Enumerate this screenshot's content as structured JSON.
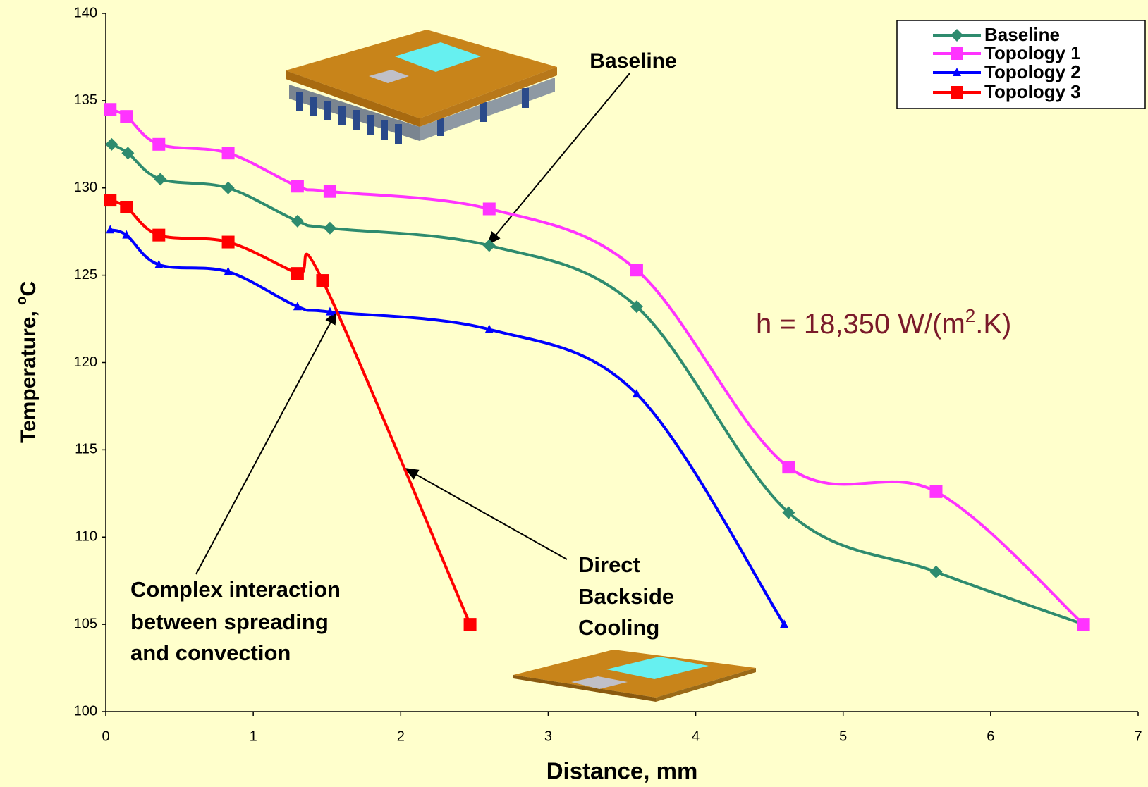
{
  "chart_data": {
    "type": "line",
    "xlabel": "Distance, mm",
    "ylabel": [
      "Temperature, ",
      "o",
      "C"
    ],
    "xlim": [
      0,
      7
    ],
    "xticks": [
      0,
      1,
      2,
      3,
      4,
      5,
      6,
      7
    ],
    "ylim": [
      100,
      140
    ],
    "yticks": [
      100,
      105,
      110,
      115,
      120,
      125,
      130,
      135,
      140
    ],
    "legend": "top-right",
    "series": [
      {
        "name": "Baseline",
        "color": "#2e8b6e",
        "marker": "diamond",
        "x": [
          0.04,
          0.15,
          0.37,
          0.83,
          1.3,
          1.52,
          2.6,
          3.6,
          4.63,
          5.63,
          6.63
        ],
        "values": [
          132.5,
          132,
          130.5,
          130,
          128.1,
          127.7,
          126.7,
          123.2,
          111.4,
          108,
          105
        ]
      },
      {
        "name": "Topology 1",
        "color": "#ff33ff",
        "marker": "square",
        "x": [
          0.03,
          0.14,
          0.36,
          0.83,
          1.3,
          1.52,
          2.6,
          3.6,
          4.63,
          5.63,
          6.63
        ],
        "values": [
          134.5,
          134.1,
          132.5,
          132,
          130.1,
          129.8,
          128.8,
          125.3,
          114,
          112.6,
          105
        ]
      },
      {
        "name": "Topology 2",
        "color": "#0000ff",
        "marker": "triangle",
        "x": [
          0.03,
          0.14,
          0.36,
          0.83,
          1.3,
          1.52,
          2.6,
          3.6,
          4.6
        ],
        "values": [
          127.6,
          127.3,
          125.6,
          125.2,
          123.2,
          122.9,
          121.9,
          118.2,
          105
        ]
      },
      {
        "name": "Topology 3",
        "color": "#ff0000",
        "marker": "square",
        "x": [
          0.03,
          0.14,
          0.36,
          0.83,
          1.3,
          1.47,
          2.47
        ],
        "values": [
          129.3,
          128.9,
          127.3,
          126.9,
          125.1,
          124.7,
          105
        ]
      }
    ],
    "annotations": {
      "baseline": "Baseline",
      "h": [
        "h = 18,350 W/(m",
        "2",
        ".K)"
      ],
      "complex": [
        "Complex interaction",
        "between spreading",
        "and convection"
      ],
      "direct": [
        "Direct",
        "Backside",
        "Cooling"
      ]
    }
  }
}
